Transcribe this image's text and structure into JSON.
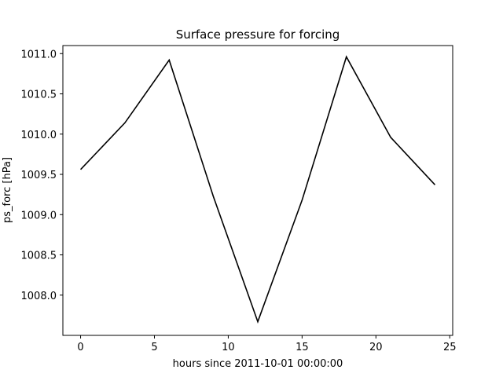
{
  "chart_data": {
    "type": "line",
    "title": "Surface pressure for forcing",
    "xlabel": "hours since 2011-10-01 00:00:00",
    "ylabel": "ps_forc [hPa]",
    "xlim": [
      -1.2,
      25.2
    ],
    "ylim": [
      1007.5,
      1011.1
    ],
    "xticks": [
      0,
      5,
      10,
      15,
      20,
      25
    ],
    "yticks": [
      1008.0,
      1008.5,
      1009.0,
      1009.5,
      1010.0,
      1010.5,
      1011.0
    ],
    "xtick_labels": [
      "0",
      "5",
      "10",
      "15",
      "20",
      "25"
    ],
    "ytick_labels": [
      "1008.0",
      "1008.5",
      "1009.0",
      "1009.5",
      "1010.0",
      "1010.5",
      "1011.0"
    ],
    "grid": false,
    "series": [
      {
        "color": "#000000",
        "x": [
          0,
          3,
          6,
          9,
          12,
          15,
          18,
          21,
          24
        ],
        "y": [
          1009.56,
          1010.14,
          1010.92,
          1009.22,
          1007.67,
          1009.18,
          1010.96,
          1009.96,
          1009.37
        ]
      }
    ]
  }
}
